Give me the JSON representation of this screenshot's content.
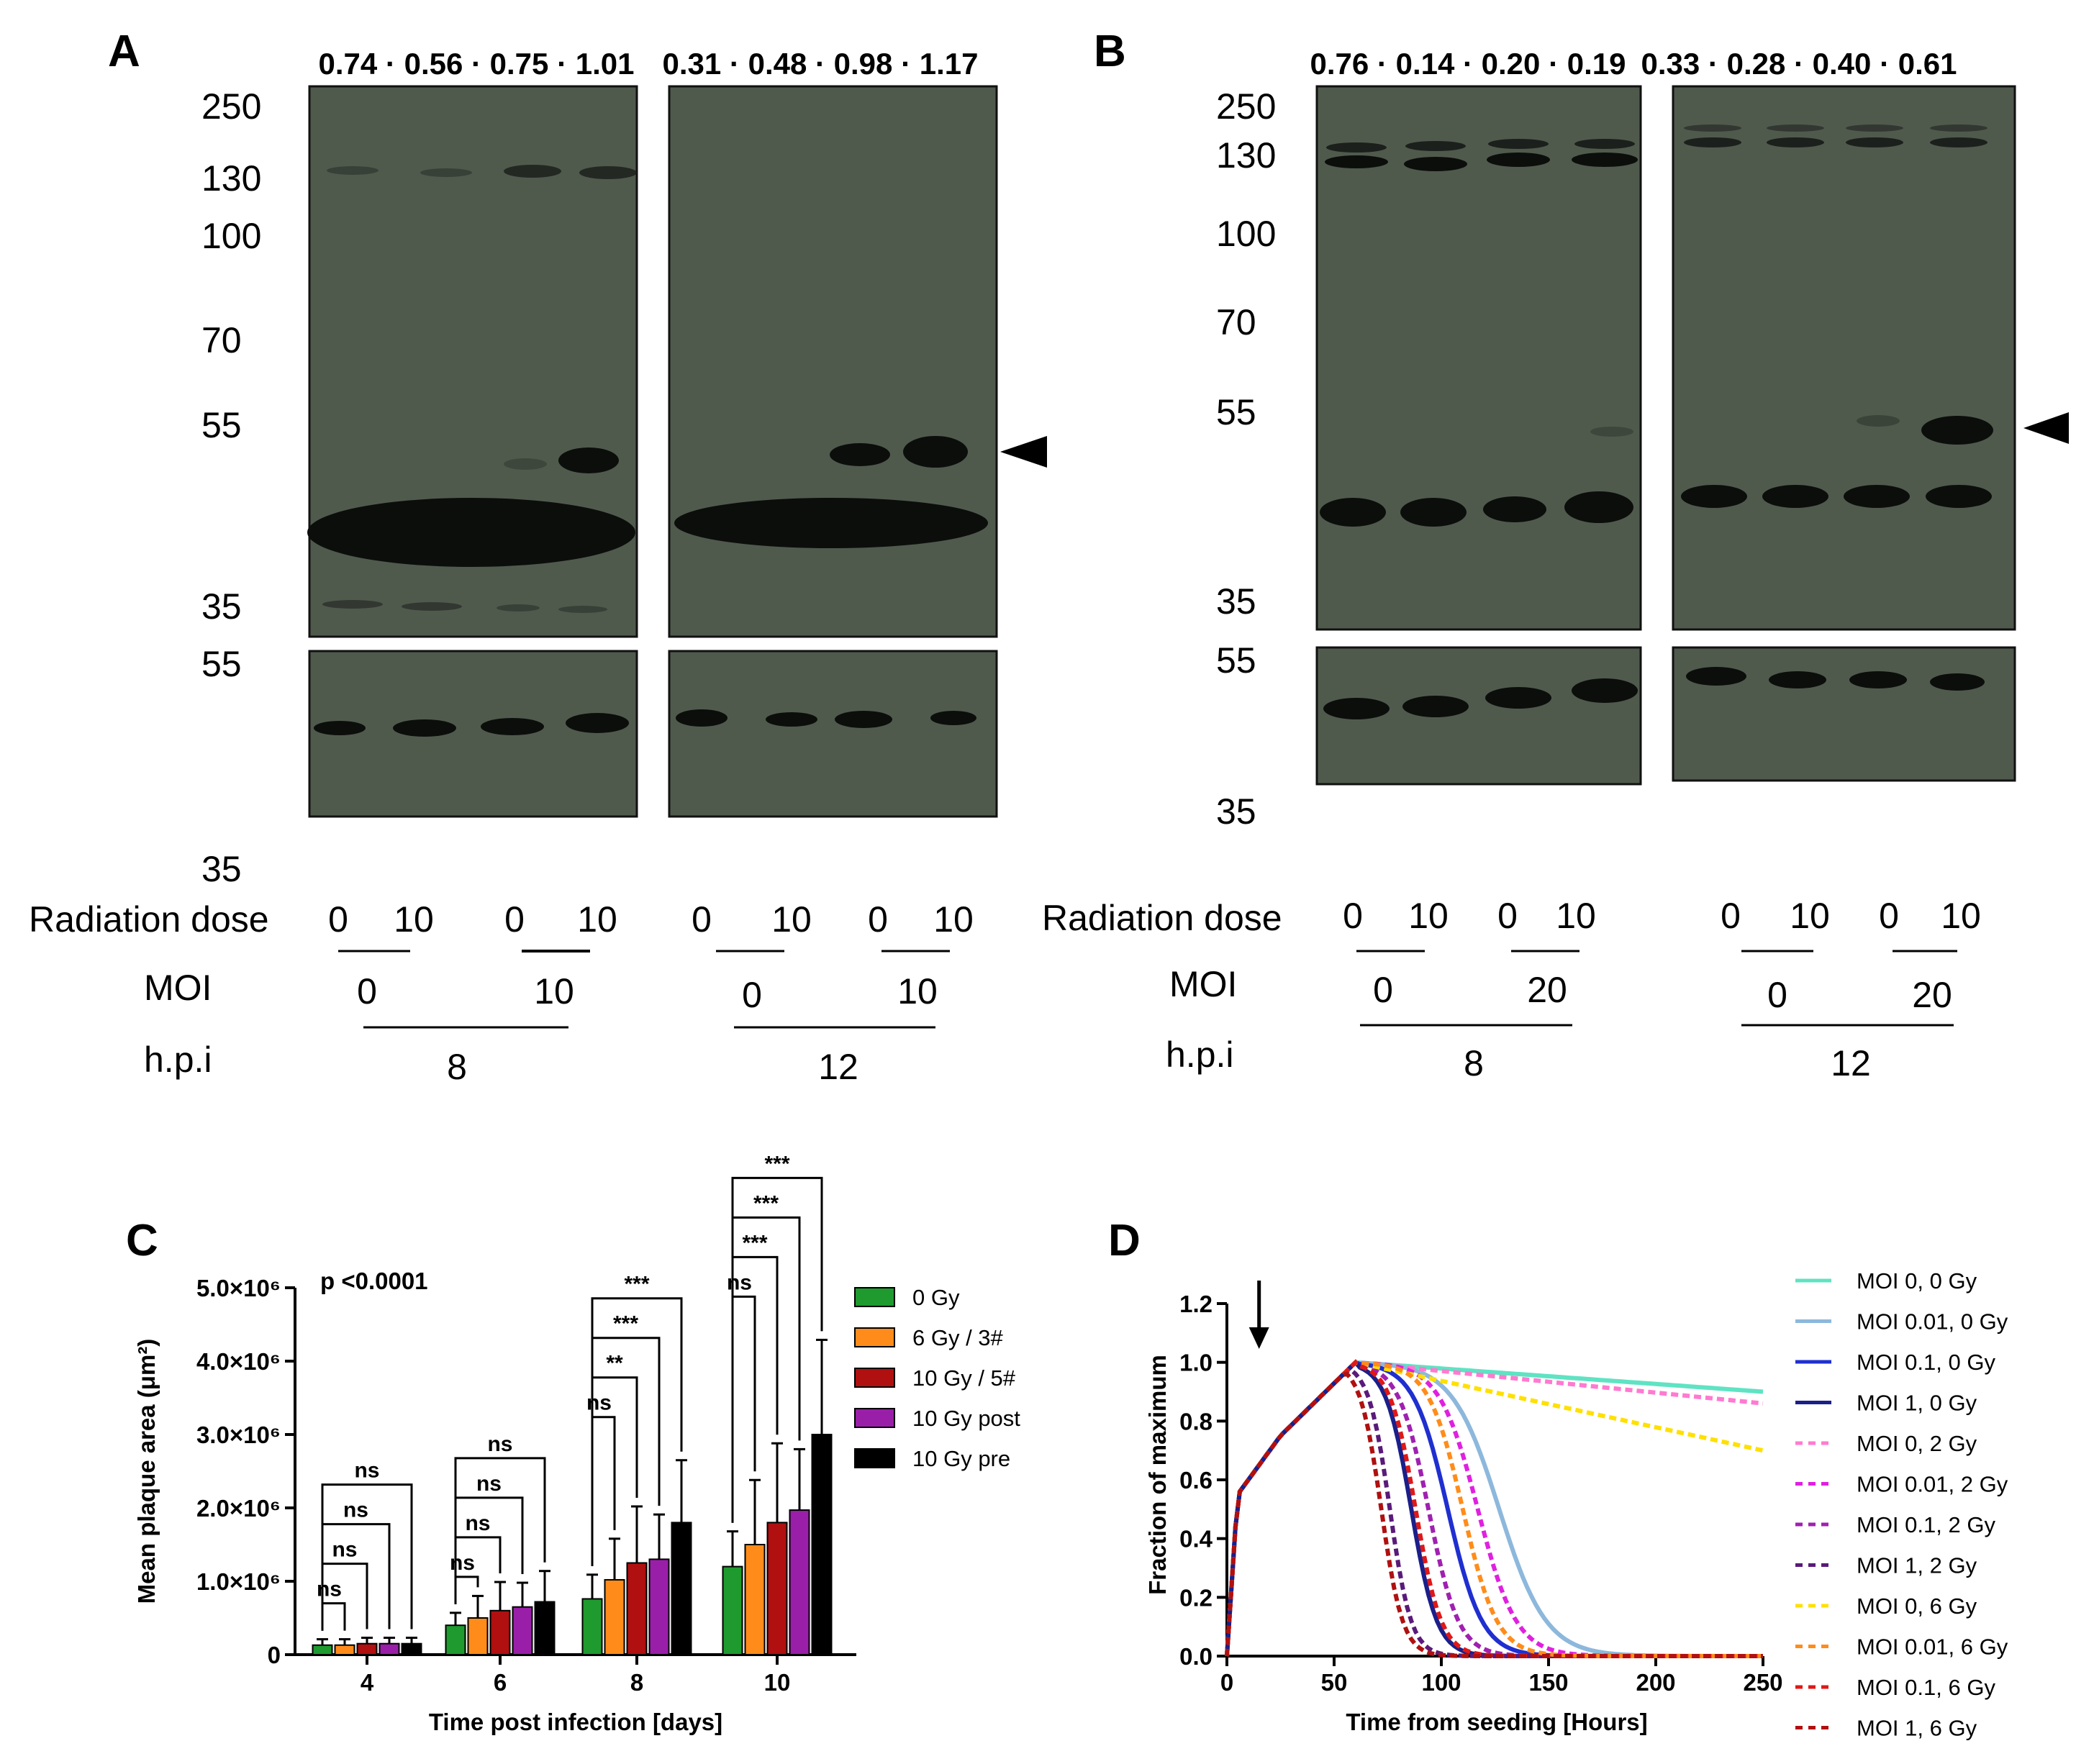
{
  "panels": {
    "A": {
      "label": "A",
      "quant_left": "0.74 · 0.56 · 0.75 · 1.01",
      "quant_right": "0.31 · 0.48 · 0.98 · 1.17",
      "mw_top": [
        "250",
        "130",
        "100",
        "70",
        "55",
        "35"
      ],
      "mw_bottom": [
        "55",
        "35"
      ],
      "rows": {
        "radiation_label": "Radiation dose",
        "moi_label": "MOI",
        "hpi_label": "h.p.i",
        "radiation_values": [
          "0",
          "10",
          "0",
          "10",
          "0",
          "10",
          "0",
          "10"
        ],
        "moi_values": [
          "0",
          "10",
          "0",
          "10"
        ],
        "hpi_values": [
          "8",
          "12"
        ]
      }
    },
    "B": {
      "label": "B",
      "quant_left": "0.76 · 0.14 · 0.20 · 0.19",
      "quant_right": "0.33 · 0.28 · 0.40 · 0.61",
      "mw_top": [
        "250",
        "130",
        "100",
        "70",
        "55",
        "35"
      ],
      "mw_bottom": [
        "55",
        "35"
      ],
      "rows": {
        "radiation_label": "Radiation dose",
        "moi_label": "MOI",
        "hpi_label": "h.p.i",
        "radiation_values": [
          "0",
          "10",
          "0",
          "10",
          "0",
          "10",
          "0",
          "10"
        ],
        "moi_values": [
          "0",
          "20",
          "0",
          "20"
        ],
        "hpi_values": [
          "8",
          "12"
        ]
      }
    },
    "C": {
      "label": "C"
    },
    "D": {
      "label": "D"
    }
  },
  "colors": {
    "blot_bg": "#4f5a4c",
    "band": "#0c0e0c",
    "green": "#1e9a2e",
    "orange": "#ff8c1a",
    "red": "#b01010",
    "purple": "#9a1fa8",
    "black": "#000000"
  },
  "chart_data": [
    {
      "type": "bar",
      "title": "p <0.0001",
      "xlabel": "Time post infection [days]",
      "ylabel": "Mean plaque area (μm²)",
      "ylim": [
        0,
        5000000
      ],
      "ytick_labels": [
        "0",
        "1.0×10⁶",
        "2.0×10⁶",
        "3.0×10⁶",
        "4.0×10⁶",
        "5.0×10⁶"
      ],
      "categories": [
        "4",
        "6",
        "8",
        "10"
      ],
      "series": [
        {
          "name": "0 Gy",
          "color": "#1e9a2e",
          "values": [
            130000,
            400000,
            760000,
            1200000
          ],
          "errors": [
            80000,
            170000,
            330000,
            480000
          ]
        },
        {
          "name": "6 Gy / 3#",
          "color": "#ff8c1a",
          "values": [
            130000,
            500000,
            1020000,
            1500000
          ],
          "errors": [
            80000,
            300000,
            560000,
            880000
          ]
        },
        {
          "name": "10 Gy / 5#",
          "color": "#b01010",
          "values": [
            150000,
            600000,
            1250000,
            1800000
          ],
          "errors": [
            80000,
            390000,
            770000,
            1080000
          ]
        },
        {
          "name": "10 Gy post",
          "color": "#9a1fa8",
          "values": [
            150000,
            650000,
            1300000,
            1970000
          ],
          "errors": [
            80000,
            330000,
            610000,
            830000
          ]
        },
        {
          "name": "10 Gy pre",
          "color": "#000000",
          "values": [
            150000,
            720000,
            1800000,
            3000000
          ],
          "errors": [
            80000,
            420000,
            850000,
            1290000
          ]
        }
      ],
      "significance": [
        {
          "day": "4",
          "labels": [
            "ns",
            "ns",
            "ns",
            "ns"
          ]
        },
        {
          "day": "6",
          "labels": [
            "ns",
            "ns",
            "ns",
            "ns"
          ]
        },
        {
          "day": "8",
          "labels": [
            "ns",
            "**",
            "***",
            "***"
          ]
        },
        {
          "day": "10",
          "labels": [
            "ns",
            "***",
            "***",
            "***"
          ]
        }
      ]
    },
    {
      "type": "line",
      "xlabel": "Time from seeding [Hours]",
      "ylabel": "Fraction of maximum",
      "xlim": [
        0,
        250
      ],
      "ylim": [
        0,
        1.2
      ],
      "xticks": [
        "0",
        "50",
        "100",
        "150",
        "200",
        "250"
      ],
      "yticks": [
        "0.0",
        "0.2",
        "0.4",
        "0.6",
        "0.8",
        "1.0",
        "1.2"
      ],
      "arrow_at_hours": 15,
      "series": [
        {
          "name": "MOI 0, 0 Gy",
          "color": "#5fe3c3",
          "style": "solid",
          "kind": "decline",
          "end": 0.9
        },
        {
          "name": "MOI 0.01, 0 Gy",
          "color": "#8db8dc",
          "style": "solid",
          "kind": "drop",
          "midpoint": 127,
          "width": 11
        },
        {
          "name": "MOI 0.1, 0 Gy",
          "color": "#1f2fd0",
          "style": "solid",
          "kind": "drop",
          "midpoint": 103,
          "width": 8
        },
        {
          "name": "MOI 1, 0 Gy",
          "color": "#1a1f8a",
          "style": "solid",
          "kind": "drop",
          "midpoint": 86,
          "width": 6
        },
        {
          "name": "MOI 0, 2 Gy",
          "color": "#ff7ad0",
          "style": "dashed",
          "kind": "decline",
          "end": 0.86
        },
        {
          "name": "MOI 0.01, 2 Gy",
          "color": "#e020e0",
          "style": "dashed",
          "kind": "drop",
          "midpoint": 117,
          "width": 9
        },
        {
          "name": "MOI 0.1, 2 Gy",
          "color": "#a020b0",
          "style": "dashed",
          "kind": "drop",
          "midpoint": 94,
          "width": 7
        },
        {
          "name": "MOI 1, 2 Gy",
          "color": "#5a1a7a",
          "style": "dashed",
          "kind": "drop",
          "midpoint": 76,
          "width": 5
        },
        {
          "name": "MOI 0, 6 Gy",
          "color": "#ffe000",
          "style": "dashed",
          "kind": "decline",
          "end": 0.7
        },
        {
          "name": "MOI 0.01, 6 Gy",
          "color": "#ff8c1a",
          "style": "dashed",
          "kind": "drop",
          "midpoint": 110,
          "width": 8
        },
        {
          "name": "MOI 0.1, 6 Gy",
          "color": "#e01818",
          "style": "dashed",
          "kind": "drop",
          "midpoint": 88,
          "width": 6
        },
        {
          "name": "MOI 1, 6 Gy",
          "color": "#b01010",
          "style": "dashed",
          "kind": "drop",
          "midpoint": 72,
          "width": 5
        }
      ]
    }
  ]
}
